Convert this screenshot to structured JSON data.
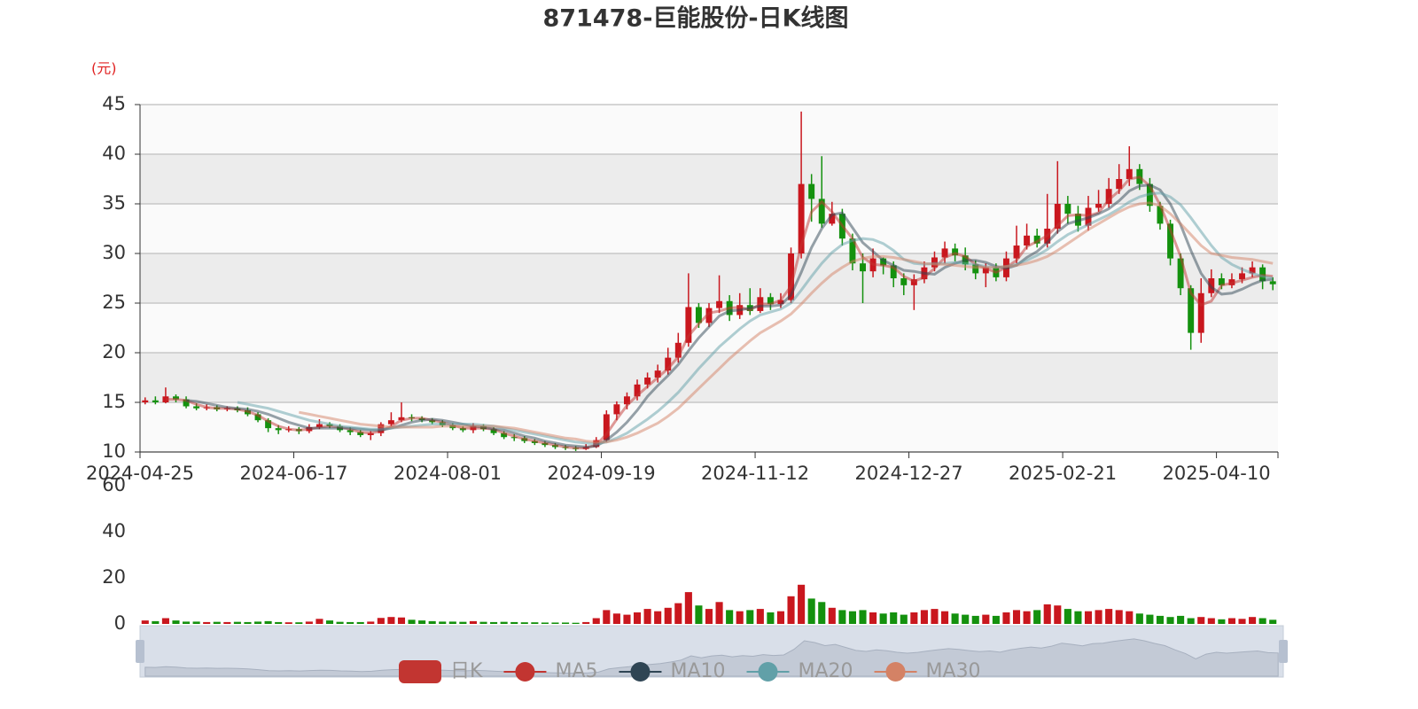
{
  "chart_data": {
    "type": "candlestick",
    "title": "871478-巨能股份-日K线图",
    "y_axis_name": "(元)",
    "categories": [
      "2024-04-25",
      null,
      null,
      null,
      null,
      null,
      null,
      null,
      null,
      null,
      null,
      null,
      null,
      null,
      null,
      "2024-06-17",
      null,
      null,
      null,
      null,
      null,
      null,
      null,
      null,
      null,
      null,
      null,
      null,
      null,
      null,
      "2024-08-01",
      null,
      null,
      null,
      null,
      null,
      null,
      null,
      null,
      null,
      null,
      null,
      null,
      null,
      null,
      "2024-09-19",
      null,
      null,
      null,
      null,
      null,
      null,
      null,
      null,
      null,
      null,
      null,
      null,
      null,
      null,
      "2024-11-12",
      null,
      null,
      null,
      null,
      null,
      null,
      null,
      null,
      null,
      null,
      null,
      null,
      null,
      null,
      "2024-12-27",
      null,
      null,
      null,
      null,
      null,
      null,
      null,
      null,
      null,
      null,
      null,
      null,
      null,
      null,
      "2025-02-21",
      null,
      null,
      null,
      null,
      null,
      null,
      null,
      null,
      null,
      null,
      null,
      null,
      null,
      null,
      "2025-04-10",
      null,
      null,
      null,
      null,
      null
    ],
    "ylim": [
      10,
      45
    ],
    "yticks": [
      10,
      15,
      20,
      25,
      30,
      35,
      40,
      45
    ],
    "grid": true,
    "up_color": "#c9171e",
    "down_color": "#14910e",
    "series": [
      {
        "name": "日K",
        "color": "#c23531",
        "open": [
          15.0,
          15.2,
          15.0,
          15.6,
          15.3,
          14.6,
          14.4,
          14.5,
          14.3,
          14.4,
          14.2,
          13.8,
          13.2,
          12.4,
          12.2,
          12.3,
          12.1,
          12.5,
          12.8,
          12.6,
          12.2,
          12.0,
          11.7,
          11.9,
          12.8,
          13.2,
          13.5,
          13.4,
          13.2,
          13.0,
          12.7,
          12.4,
          12.2,
          12.6,
          12.3,
          11.9,
          11.5,
          11.4,
          11.1,
          10.9,
          10.7,
          10.5,
          10.4,
          10.3,
          10.5,
          11.2,
          13.8,
          14.8,
          15.6,
          16.8,
          17.5,
          18.2,
          19.5,
          21.0,
          24.6,
          23.0,
          24.5,
          25.2,
          23.8,
          24.8,
          24.2,
          25.6,
          24.9,
          25.3,
          30.0,
          37.0,
          35.5,
          33.0,
          34.0,
          31.5,
          29.0,
          28.2,
          29.5,
          28.8,
          27.5,
          26.8,
          27.4,
          28.6,
          29.6,
          30.5,
          29.8,
          28.9,
          28.0,
          28.6,
          27.6,
          29.5,
          30.8,
          31.8,
          31.0,
          32.5,
          35.0,
          34.0,
          32.8,
          34.6,
          35.0,
          36.5,
          37.5,
          38.5,
          37.0,
          34.8,
          33.0,
          29.5,
          26.5,
          22.0,
          26.0,
          27.5,
          26.8,
          27.4,
          28.0,
          28.6,
          27.2
        ],
        "close": [
          15.2,
          15.0,
          15.6,
          15.3,
          14.6,
          14.4,
          14.5,
          14.3,
          14.4,
          14.2,
          13.8,
          13.2,
          12.4,
          12.2,
          12.3,
          12.1,
          12.5,
          12.8,
          12.6,
          12.2,
          12.0,
          11.7,
          11.9,
          12.8,
          13.2,
          13.5,
          13.4,
          13.2,
          13.0,
          12.7,
          12.4,
          12.2,
          12.6,
          12.3,
          11.9,
          11.5,
          11.4,
          11.1,
          10.9,
          10.7,
          10.5,
          10.4,
          10.3,
          10.5,
          11.2,
          13.8,
          14.8,
          15.6,
          16.8,
          17.5,
          18.2,
          19.5,
          21.0,
          24.6,
          23.0,
          24.5,
          25.2,
          23.8,
          24.8,
          24.2,
          25.6,
          24.9,
          25.3,
          30.0,
          37.0,
          35.5,
          33.0,
          34.0,
          31.5,
          29.0,
          28.2,
          29.5,
          28.8,
          27.5,
          26.8,
          27.4,
          28.6,
          29.6,
          30.5,
          29.8,
          28.9,
          28.0,
          28.6,
          27.6,
          29.5,
          30.8,
          31.8,
          31.0,
          32.5,
          35.0,
          34.0,
          32.8,
          34.6,
          35.0,
          36.5,
          37.5,
          38.5,
          37.0,
          34.8,
          33.0,
          29.5,
          26.5,
          22.0,
          26.0,
          27.5,
          26.8,
          27.4,
          28.0,
          28.6,
          27.2,
          26.9
        ],
        "high": [
          15.5,
          15.6,
          16.5,
          15.8,
          15.6,
          14.9,
          14.8,
          14.7,
          14.6,
          14.6,
          14.5,
          14.0,
          13.4,
          12.7,
          12.6,
          12.5,
          12.8,
          13.3,
          13.0,
          12.8,
          12.5,
          12.2,
          12.1,
          13.0,
          14.0,
          15.0,
          13.8,
          13.6,
          13.4,
          13.2,
          12.9,
          12.6,
          12.9,
          12.8,
          12.5,
          12.1,
          11.8,
          11.6,
          11.3,
          11.1,
          10.9,
          10.7,
          10.6,
          10.8,
          11.5,
          14.2,
          15.1,
          16.0,
          17.3,
          18.0,
          18.8,
          20.5,
          22.0,
          28.0,
          25.0,
          25.0,
          27.8,
          25.8,
          26.0,
          26.5,
          26.5,
          26.0,
          26.0,
          30.6,
          44.3,
          38.0,
          39.8,
          35.2,
          34.5,
          32.0,
          30.0,
          30.5,
          29.6,
          29.2,
          28.0,
          27.9,
          29.2,
          30.2,
          31.2,
          31.0,
          30.6,
          29.3,
          29.0,
          29.0,
          30.2,
          32.8,
          33.0,
          32.5,
          36.0,
          39.3,
          35.8,
          34.8,
          35.8,
          36.4,
          37.6,
          39.0,
          40.8,
          39.0,
          37.6,
          35.2,
          33.4,
          30.0,
          26.8,
          27.5,
          28.4,
          28.0,
          28.0,
          28.6,
          29.2,
          28.9,
          27.6
        ],
        "low": [
          14.8,
          14.8,
          14.9,
          15.0,
          14.4,
          14.2,
          14.2,
          14.1,
          14.1,
          14.0,
          13.6,
          13.0,
          12.0,
          11.8,
          12.0,
          11.8,
          11.9,
          12.3,
          12.4,
          12.0,
          11.7,
          11.5,
          11.2,
          11.6,
          12.6,
          13.0,
          13.1,
          13.0,
          12.8,
          12.5,
          12.2,
          12.0,
          11.9,
          12.1,
          11.7,
          11.3,
          11.1,
          10.9,
          10.7,
          10.5,
          10.3,
          10.2,
          10.1,
          10.2,
          10.4,
          11.0,
          13.2,
          14.3,
          15.2,
          16.4,
          17.0,
          17.8,
          19.0,
          20.6,
          22.5,
          22.6,
          24.0,
          23.2,
          23.4,
          23.8,
          24.0,
          24.3,
          24.5,
          25.0,
          29.5,
          33.2,
          32.6,
          32.8,
          30.8,
          28.3,
          25.0,
          27.6,
          27.9,
          26.6,
          25.8,
          24.3,
          27.0,
          28.2,
          29.0,
          29.2,
          28.3,
          27.4,
          26.6,
          27.2,
          27.2,
          29.0,
          30.4,
          30.6,
          30.6,
          32.0,
          33.0,
          32.2,
          32.3,
          34.2,
          34.6,
          36.0,
          36.8,
          36.4,
          34.2,
          32.4,
          28.8,
          25.8,
          20.3,
          21.0,
          25.6,
          26.4,
          26.5,
          27.0,
          27.6,
          26.4,
          26.3
        ]
      },
      {
        "name": "MA5",
        "color": "#c23531",
        "values": [
          null,
          null,
          15.3,
          15.3,
          15.2,
          14.8,
          14.5,
          14.4,
          14.4,
          14.3,
          14.1,
          13.7,
          13.1,
          12.6,
          12.3,
          12.2,
          12.3,
          12.5,
          12.6,
          12.5,
          12.3,
          12.0,
          11.9,
          12.1,
          12.6,
          13.2,
          13.4,
          13.4,
          13.2,
          13.0,
          12.7,
          12.4,
          12.4,
          12.4,
          12.3,
          11.9,
          11.6,
          11.3,
          11.1,
          10.9,
          10.7,
          10.5,
          10.4,
          10.4,
          10.7,
          11.8,
          13.3,
          14.7,
          15.7,
          16.6,
          17.5,
          18.4,
          19.6,
          21.7,
          22.9,
          24.0,
          24.2,
          24.5,
          24.6,
          24.3,
          24.9,
          24.9,
          25.3,
          26.7,
          30.8,
          34.2,
          35.2,
          34.2,
          32.8,
          31.5,
          29.6,
          28.9,
          28.8,
          28.6,
          27.7,
          27.2,
          27.6,
          28.5,
          29.6,
          30.0,
          29.7,
          28.9,
          28.5,
          28.1,
          28.6,
          29.3,
          30.7,
          31.2,
          31.8,
          32.8,
          33.8,
          33.9,
          33.8,
          34.1,
          35.4,
          36.3,
          37.5,
          37.7,
          36.8,
          34.9,
          32.4,
          29.7,
          26.0,
          24.8,
          25.2,
          26.8,
          27.0,
          27.3,
          27.6,
          27.8,
          27.7
        ]
      },
      {
        "name": "MA10",
        "color": "#2f4554",
        "values": [
          null,
          null,
          null,
          null,
          15.2,
          15.1,
          14.9,
          14.7,
          14.5,
          14.4,
          14.3,
          14.1,
          13.8,
          13.4,
          13.0,
          12.7,
          12.4,
          12.4,
          12.4,
          12.4,
          12.4,
          12.3,
          12.2,
          12.2,
          12.4,
          12.7,
          13.0,
          13.2,
          13.3,
          13.2,
          13.0,
          12.8,
          12.6,
          12.5,
          12.3,
          12.2,
          11.9,
          11.6,
          11.4,
          11.1,
          10.9,
          10.7,
          10.6,
          10.5,
          10.6,
          11.2,
          12.0,
          13.0,
          14.2,
          15.6,
          16.7,
          17.7,
          18.8,
          20.2,
          21.5,
          22.6,
          23.7,
          24.2,
          24.3,
          24.5,
          24.7,
          24.7,
          24.8,
          25.8,
          28.1,
          30.6,
          32.5,
          33.9,
          34.1,
          32.6,
          31.1,
          30.2,
          29.3,
          28.8,
          28.3,
          28.2,
          28.0,
          27.9,
          28.6,
          29.0,
          29.3,
          29.3,
          29.1,
          28.7,
          28.5,
          28.8,
          29.6,
          30.2,
          31.1,
          32.2,
          33.0,
          33.3,
          33.6,
          34.0,
          34.5,
          35.3,
          36.3,
          36.8,
          36.9,
          36.4,
          35.0,
          32.9,
          30.3,
          28.0,
          26.6,
          25.9,
          26.0,
          26.4,
          26.9,
          27.3,
          27.4
        ]
      },
      {
        "name": "MA20",
        "color": "#61a0a8",
        "values": [
          null,
          null,
          null,
          null,
          null,
          null,
          null,
          null,
          null,
          15.0,
          14.8,
          14.6,
          14.4,
          14.1,
          13.8,
          13.5,
          13.2,
          13.0,
          12.8,
          12.6,
          12.5,
          12.4,
          12.3,
          12.3,
          12.4,
          12.5,
          12.6,
          12.7,
          12.8,
          12.8,
          12.8,
          12.8,
          12.8,
          12.7,
          12.6,
          12.4,
          12.2,
          12.0,
          11.8,
          11.6,
          11.4,
          11.2,
          11.0,
          10.9,
          10.8,
          11.0,
          11.4,
          11.9,
          12.6,
          13.3,
          14.1,
          15.0,
          16.0,
          17.2,
          18.4,
          19.5,
          20.6,
          21.5,
          22.4,
          23.2,
          23.8,
          24.1,
          24.4,
          25.0,
          26.3,
          27.7,
          29.0,
          30.1,
          30.9,
          31.3,
          31.5,
          31.4,
          31.0,
          30.3,
          29.4,
          29.0,
          28.9,
          29.0,
          29.0,
          29.1,
          29.0,
          28.9,
          28.7,
          28.6,
          28.7,
          28.9,
          29.3,
          29.8,
          30.4,
          31.2,
          31.9,
          32.4,
          32.9,
          33.4,
          33.9,
          34.5,
          35.2,
          35.7,
          36.0,
          36.1,
          35.7,
          34.9,
          33.6,
          32.2,
          30.8,
          29.6,
          28.9,
          28.4,
          28.0,
          27.7,
          27.5
        ]
      },
      {
        "name": "MA30",
        "color": "#d48265",
        "values": [
          null,
          null,
          null,
          null,
          null,
          null,
          null,
          null,
          null,
          null,
          null,
          null,
          null,
          null,
          null,
          14.0,
          13.8,
          13.6,
          13.4,
          13.2,
          13.0,
          12.8,
          12.7,
          12.6,
          12.5,
          12.5,
          12.5,
          12.5,
          12.5,
          12.6,
          12.6,
          12.6,
          12.6,
          12.6,
          12.6,
          12.5,
          12.4,
          12.2,
          12.0,
          11.8,
          11.6,
          11.4,
          11.3,
          11.1,
          11.0,
          11.0,
          11.2,
          11.5,
          11.9,
          12.4,
          12.9,
          13.6,
          14.4,
          15.4,
          16.4,
          17.4,
          18.4,
          19.4,
          20.3,
          21.2,
          22.0,
          22.6,
          23.2,
          23.9,
          24.9,
          26.0,
          27.0,
          27.9,
          28.6,
          29.2,
          29.5,
          29.7,
          29.7,
          29.6,
          29.4,
          29.2,
          29.0,
          28.9,
          28.9,
          28.8,
          28.7,
          28.6,
          28.6,
          28.6,
          28.7,
          28.8,
          29.0,
          29.3,
          29.7,
          30.3,
          31.0,
          31.7,
          32.4,
          33.0,
          33.6,
          34.2,
          34.7,
          35.0,
          35.1,
          34.8,
          34.0,
          33.0,
          31.9,
          30.8,
          30.0,
          29.8,
          29.6,
          29.5,
          29.4,
          29.2,
          29.0
        ]
      }
    ],
    "volume": {
      "ylim": [
        0,
        60
      ],
      "yticks": [
        0,
        20,
        40,
        60
      ],
      "values": [
        1.5,
        1.2,
        2.5,
        1.5,
        1.0,
        1.0,
        0.8,
        0.9,
        0.8,
        0.9,
        0.8,
        1.0,
        1.2,
        0.8,
        0.7,
        0.7,
        1.0,
        2.2,
        1.5,
        0.9,
        0.8,
        0.8,
        1.0,
        2.6,
        3.0,
        2.8,
        1.8,
        1.5,
        1.2,
        1.0,
        1.0,
        0.9,
        1.2,
        0.9,
        0.8,
        0.9,
        0.8,
        0.7,
        0.7,
        0.6,
        0.6,
        0.6,
        0.5,
        0.8,
        2.5,
        6.0,
        4.5,
        4.0,
        5.0,
        6.5,
        5.5,
        7.0,
        9.0,
        13.8,
        8.0,
        6.5,
        9.5,
        6.0,
        5.5,
        6.0,
        6.5,
        5.0,
        5.5,
        12.0,
        17.0,
        11.0,
        9.5,
        7.0,
        6.0,
        5.5,
        6.0,
        5.0,
        4.5,
        5.0,
        4.0,
        5.0,
        6.0,
        6.5,
        5.5,
        4.5,
        4.0,
        3.5,
        4.0,
        3.5,
        5.0,
        6.0,
        5.5,
        6.0,
        8.5,
        8.0,
        6.5,
        5.5,
        5.5,
        6.0,
        6.5,
        6.0,
        5.5,
        4.5,
        4.0,
        3.5,
        3.0,
        3.5,
        2.5,
        3.0,
        2.5,
        2.0,
        2.5,
        2.2,
        3.0,
        2.5,
        1.8
      ]
    }
  }
}
